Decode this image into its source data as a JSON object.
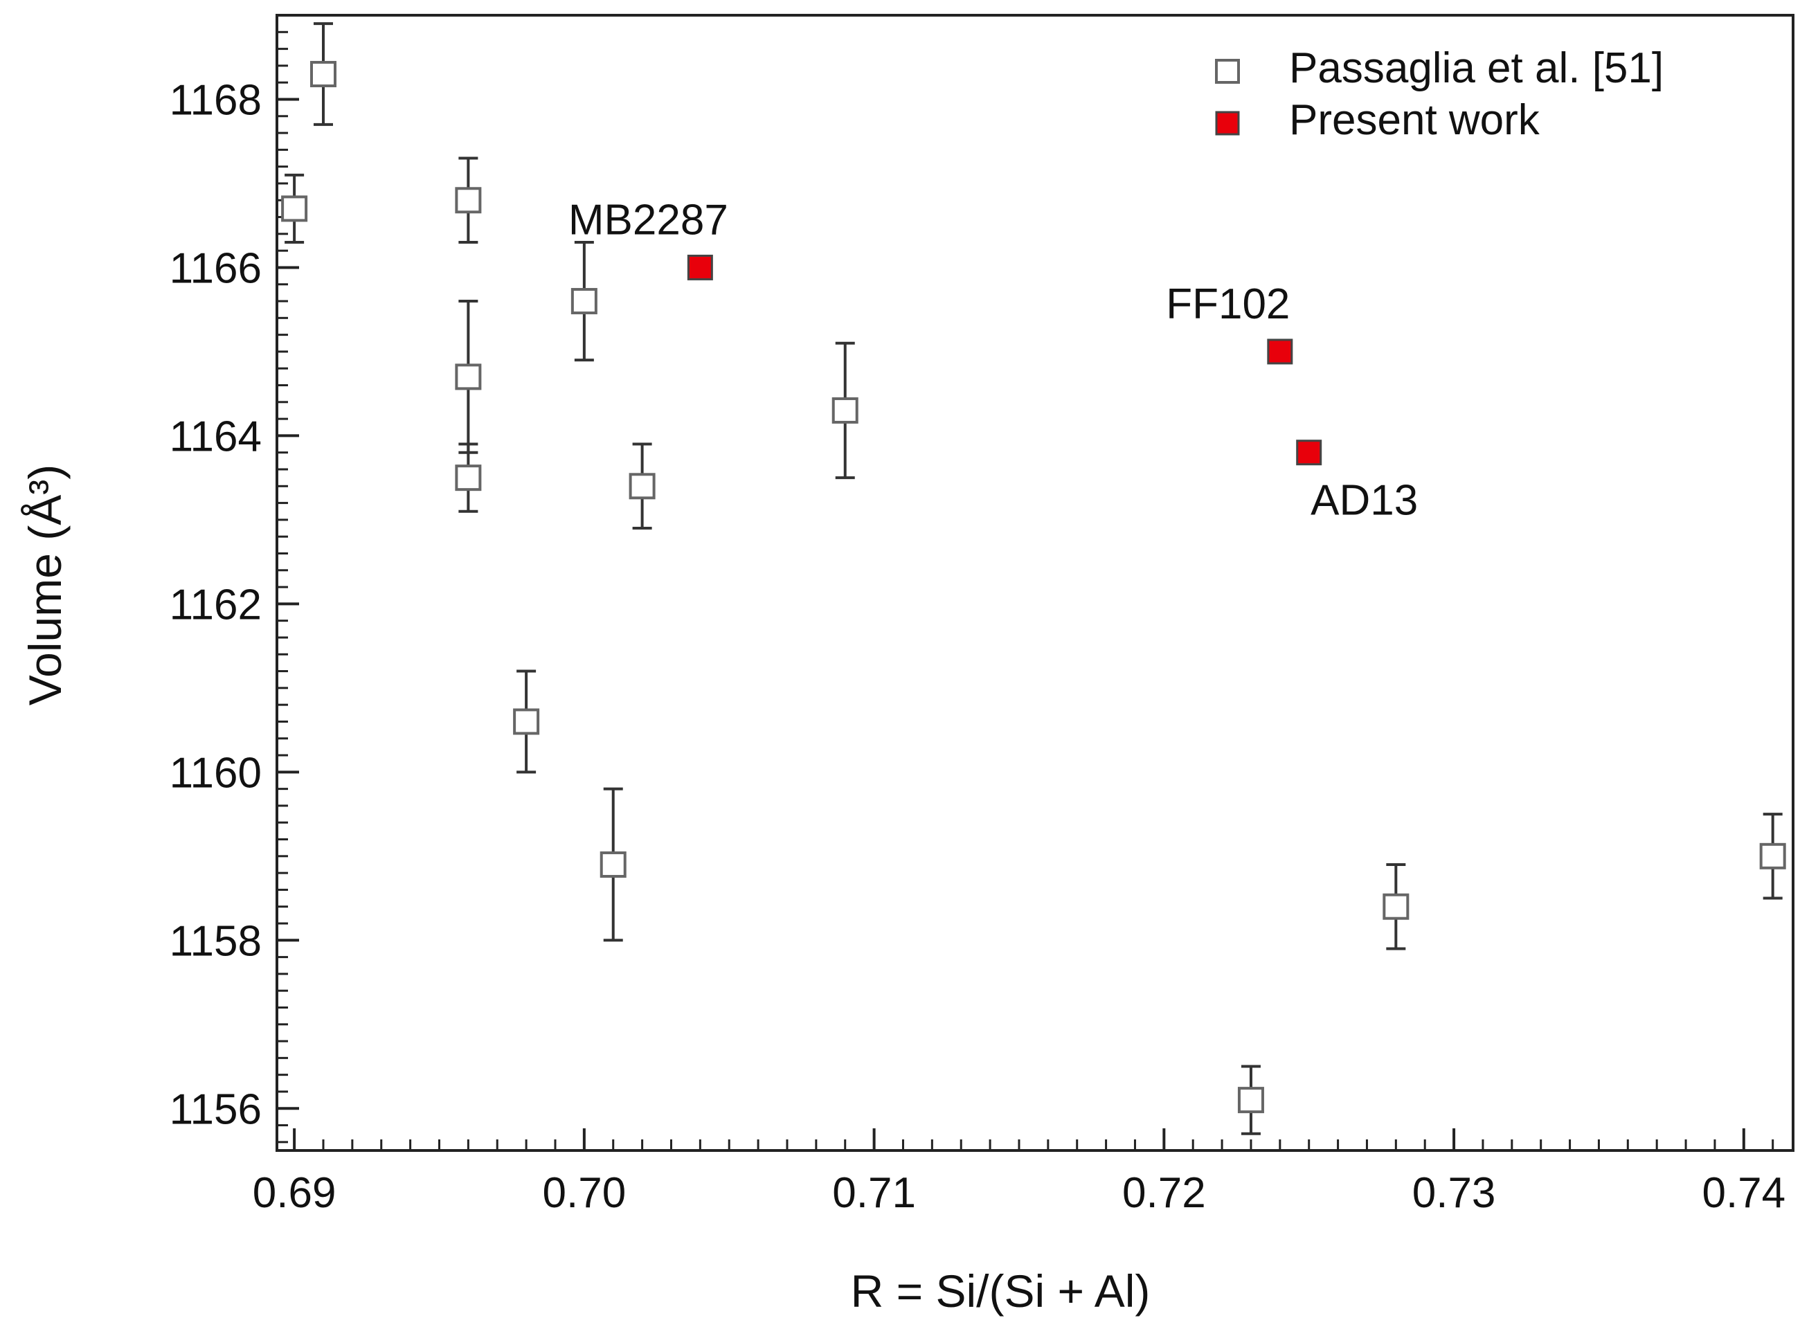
{
  "chart_data": {
    "type": "scatter",
    "xlabel": "R = Si/(Si + Al)",
    "ylabel": "Volume (Å³)",
    "xlim": [
      0.6894,
      0.7417
    ],
    "ylim": [
      1155.5,
      1169.0
    ],
    "x_ticks": [
      {
        "value": 0.69,
        "label": "0.69"
      },
      {
        "value": 0.7,
        "label": "0.70"
      },
      {
        "value": 0.71,
        "label": "0.71"
      },
      {
        "value": 0.72,
        "label": "0.72"
      },
      {
        "value": 0.73,
        "label": "0.73"
      },
      {
        "value": 0.74,
        "label": "0.74"
      }
    ],
    "y_ticks": [
      {
        "value": 1156,
        "label": "1156"
      },
      {
        "value": 1158,
        "label": "1158"
      },
      {
        "value": 1160,
        "label": "1160"
      },
      {
        "value": 1162,
        "label": "1162"
      },
      {
        "value": 1164,
        "label": "1164"
      },
      {
        "value": 1166,
        "label": "1166"
      },
      {
        "value": 1168,
        "label": "1168"
      }
    ],
    "x_minor_step": 0.001,
    "y_minor_step": 0.2,
    "legend": {
      "position": "top-right",
      "entries": [
        {
          "label": "Passaglia et al. [51]",
          "marker": "open-square"
        },
        {
          "label": "Present work",
          "marker": "filled-square"
        }
      ]
    },
    "colors": {
      "present_fill": "#e8000b",
      "passaglia_stroke": "#666666",
      "errorbar": "#333333",
      "axis": "#222222"
    },
    "series": [
      {
        "name": "Passaglia et al. [51]",
        "marker": "open-square",
        "points": [
          {
            "x": 0.69,
            "y": 1166.7,
            "err": 0.4
          },
          {
            "x": 0.691,
            "y": 1168.3,
            "err": 0.6
          },
          {
            "x": 0.696,
            "y": 1166.8,
            "err": 0.5
          },
          {
            "x": 0.696,
            "y": 1164.7,
            "err": 0.9
          },
          {
            "x": 0.696,
            "y": 1163.5,
            "err": 0.4
          },
          {
            "x": 0.698,
            "y": 1160.6,
            "err": 0.6
          },
          {
            "x": 0.7,
            "y": 1165.6,
            "err": 0.7
          },
          {
            "x": 0.701,
            "y": 1158.9,
            "err": 0.9
          },
          {
            "x": 0.702,
            "y": 1163.4,
            "err": 0.5
          },
          {
            "x": 0.709,
            "y": 1164.3,
            "err": 0.8
          },
          {
            "x": 0.723,
            "y": 1156.1,
            "err": 0.4
          },
          {
            "x": 0.728,
            "y": 1158.4,
            "err": 0.5
          },
          {
            "x": 0.741,
            "y": 1159.0,
            "err": 0.5
          }
        ]
      },
      {
        "name": "Present work",
        "marker": "filled-square",
        "points": [
          {
            "x": 0.704,
            "y": 1166.0,
            "label": "MB2287",
            "label_pos": "above"
          },
          {
            "x": 0.724,
            "y": 1165.0,
            "label": "FF102",
            "label_pos": "above"
          },
          {
            "x": 0.725,
            "y": 1163.8,
            "label": "AD13",
            "label_pos": "below"
          }
        ]
      }
    ]
  }
}
